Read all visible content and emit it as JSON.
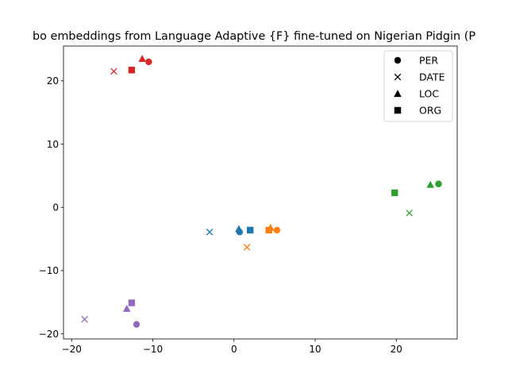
{
  "chart_data": {
    "type": "scatter",
    "title": "bo embeddings from Language Adaptive {F} fine-tuned on Nigerian Pidgin (P",
    "xlabel": "",
    "ylabel": "",
    "xlim": [
      -21,
      27.5
    ],
    "ylim": [
      -20.8,
      25.5
    ],
    "xticks": [
      -20,
      -10,
      0,
      10,
      20
    ],
    "yticks": [
      -20,
      -10,
      0,
      10,
      20
    ],
    "grid": false,
    "legend_position": "top-right",
    "legend": [
      {
        "label": "PER",
        "marker": "circle"
      },
      {
        "label": "DATE",
        "marker": "x"
      },
      {
        "label": "LOC",
        "marker": "triangle"
      },
      {
        "label": "ORG",
        "marker": "square"
      }
    ],
    "series": [
      {
        "color": "#1f77b4",
        "points": [
          {
            "marker": "circle",
            "x": 0.7,
            "y": -3.9
          },
          {
            "marker": "x",
            "x": -3.0,
            "y": -3.9
          },
          {
            "marker": "triangle",
            "x": 0.6,
            "y": -3.4
          },
          {
            "marker": "square",
            "x": 2.0,
            "y": -3.6
          }
        ]
      },
      {
        "color": "#ff7f0e",
        "points": [
          {
            "marker": "circle",
            "x": 5.3,
            "y": -3.6
          },
          {
            "marker": "x",
            "x": 1.6,
            "y": -6.3
          },
          {
            "marker": "triangle",
            "x": 4.5,
            "y": -3.2
          },
          {
            "marker": "square",
            "x": 4.3,
            "y": -3.6
          }
        ]
      },
      {
        "color": "#2ca02c",
        "points": [
          {
            "marker": "circle",
            "x": 25.2,
            "y": 3.7
          },
          {
            "marker": "x",
            "x": 21.6,
            "y": -0.9
          },
          {
            "marker": "triangle",
            "x": 24.2,
            "y": 3.6
          },
          {
            "marker": "square",
            "x": 19.8,
            "y": 2.3
          }
        ]
      },
      {
        "color": "#d62728",
        "points": [
          {
            "marker": "circle",
            "x": -10.5,
            "y": 23.0
          },
          {
            "marker": "x",
            "x": -14.8,
            "y": 21.5
          },
          {
            "marker": "triangle",
            "x": -11.3,
            "y": 23.5
          },
          {
            "marker": "square",
            "x": -12.6,
            "y": 21.7
          }
        ]
      },
      {
        "color": "#9467bd",
        "points": [
          {
            "marker": "circle",
            "x": -12.0,
            "y": -18.5
          },
          {
            "marker": "x",
            "x": -18.4,
            "y": -17.7
          },
          {
            "marker": "triangle",
            "x": -13.2,
            "y": -16.0
          },
          {
            "marker": "square",
            "x": -12.6,
            "y": -15.1
          }
        ]
      }
    ]
  }
}
